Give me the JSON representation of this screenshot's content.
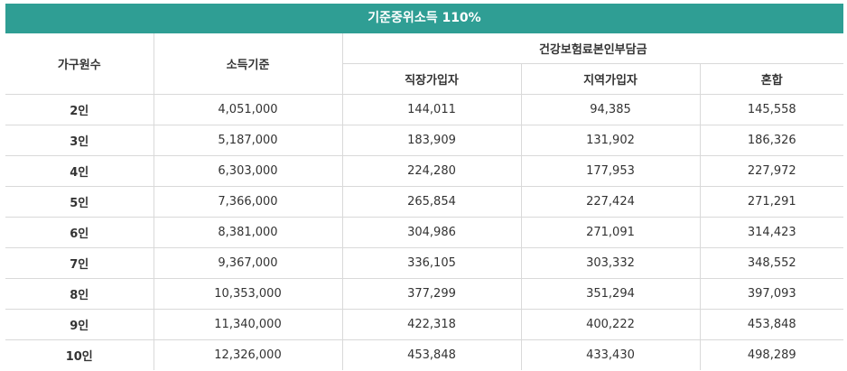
{
  "title": "기준중위소득 110%",
  "headers": {
    "household": "가구원수",
    "income": "소득기준",
    "premium_group": "건강보험료본인부담금",
    "workplace": "직장가입자",
    "regional": "지역가입자",
    "mixed": "혼합"
  },
  "rows": [
    [
      "2인",
      "4,051,000",
      "144,011",
      "94,385",
      "145,558"
    ],
    [
      "3인",
      "5,187,000",
      "183,909",
      "131,902",
      "186,326"
    ],
    [
      "4인",
      "6,303,000",
      "224,280",
      "177,953",
      "227,972"
    ],
    [
      "5인",
      "7,366,000",
      "265,854",
      "227,424",
      "271,291"
    ],
    [
      "6인",
      "8,381,000",
      "304,986",
      "271,091",
      "314,423"
    ],
    [
      "7인",
      "9,367,000",
      "336,105",
      "303,332",
      "348,552"
    ],
    [
      "8인",
      "10,353,000",
      "377,299",
      "351,294",
      "397,093"
    ],
    [
      "9인",
      "11,340,000",
      "422,318",
      "400,222",
      "453,848"
    ],
    [
      "10인",
      "12,326,000",
      "453,848",
      "433,430",
      "498,289"
    ]
  ]
}
